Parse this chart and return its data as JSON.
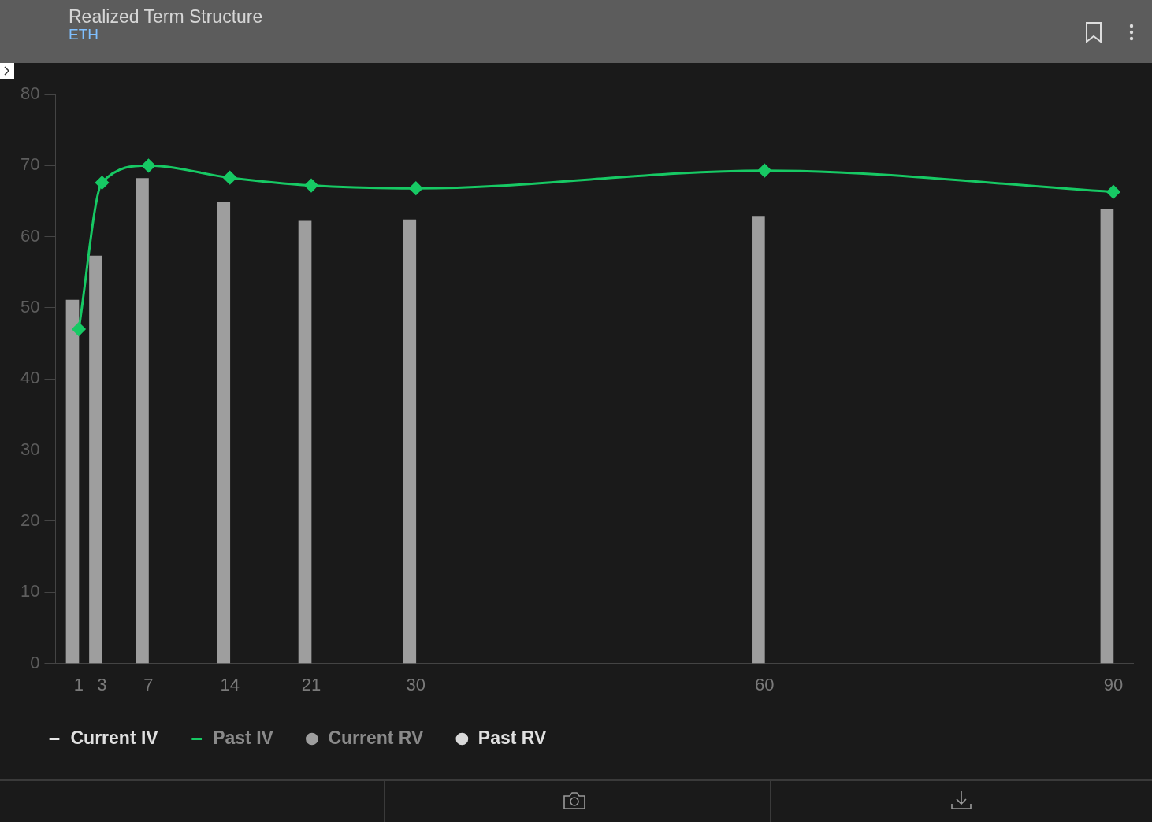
{
  "chart_data": {
    "type": "bar",
    "title": "Realized Term Structure",
    "subtitle": "ETH",
    "x": [
      1,
      3,
      7,
      14,
      21,
      30,
      60,
      90
    ],
    "series": [
      {
        "name": "Current IV",
        "type": "line",
        "color": "#e6e6e6",
        "marker": "circle",
        "values": [
          null,
          null,
          null,
          null,
          null,
          null,
          null,
          null
        ]
      },
      {
        "name": "Past IV",
        "type": "line",
        "color": "#17c964",
        "marker": "diamond",
        "values": [
          47,
          67.6,
          70,
          68.3,
          67.2,
          66.8,
          69.3,
          66.3
        ]
      },
      {
        "name": "Current RV",
        "color": "#9e9e9e",
        "values": [
          51.1,
          57.3,
          68.2,
          64.9,
          62.2,
          62.4,
          62.9,
          63.8
        ]
      },
      {
        "name": "Past RV",
        "color": "#d9d9d9",
        "values": [
          null,
          null,
          null,
          null,
          null,
          null,
          null,
          null
        ]
      }
    ],
    "xlim": [
      -1,
      91.7
    ],
    "xticks": [
      1,
      3,
      7,
      14,
      21,
      30,
      60,
      90
    ],
    "ylim": [
      0,
      80
    ],
    "yticks": [
      0,
      10,
      20,
      30,
      40,
      50,
      60,
      70,
      80
    ],
    "grid": false,
    "legend": "bottom"
  }
}
